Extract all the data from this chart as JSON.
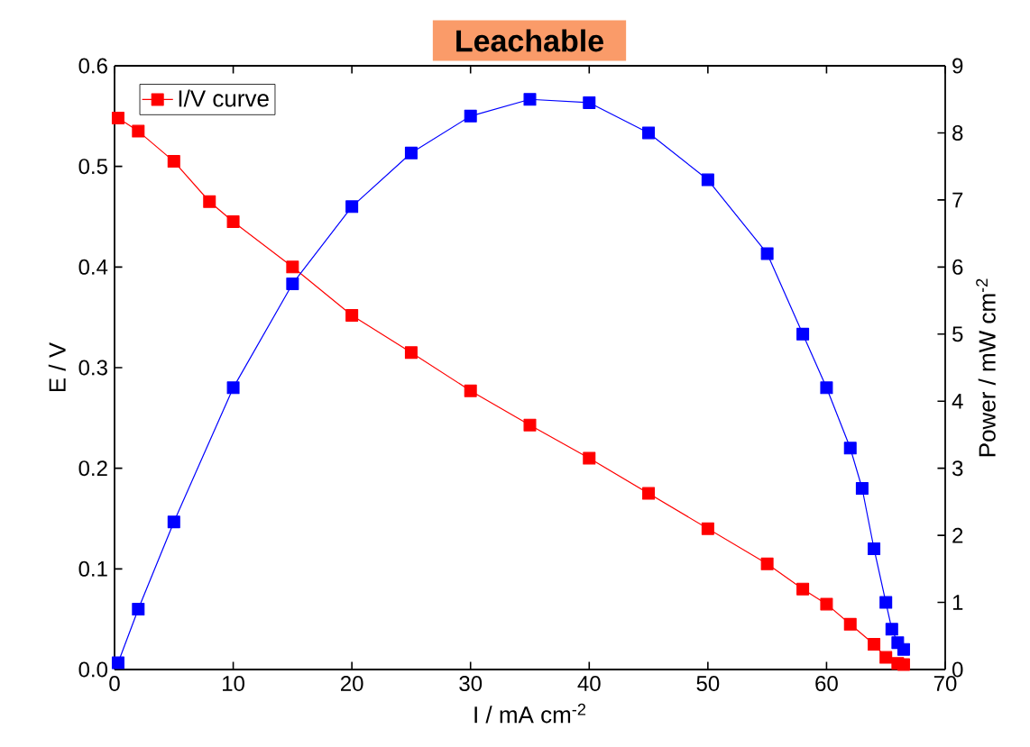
{
  "chart_data": {
    "type": "line",
    "title": "Leachable",
    "xlabel": "I / mA cm$^{-2}$",
    "ylabel": "E / V",
    "y2label": "Power / mW cm$^{-2}$",
    "xlim": [
      0,
      70
    ],
    "xticks": [
      0,
      10,
      20,
      30,
      40,
      50,
      60,
      70
    ],
    "ylim": [
      0,
      0.6
    ],
    "yticks": [
      {
        "value": 0,
        "label": "0.0"
      },
      0.1,
      0.2,
      0.3,
      0.4,
      0.5,
      0.6
    ],
    "y2lim": [
      0,
      9
    ],
    "y2ticks": [
      0,
      1,
      2,
      3,
      4,
      5,
      6,
      7,
      8,
      9
    ],
    "legend": "top left",
    "marker": "square",
    "line_style": "solid",
    "series": [
      {
        "name": "I/V curve",
        "color": "#ff0000",
        "x": [
          0.3,
          2,
          5,
          8,
          10,
          15,
          20,
          25,
          30,
          35,
          40,
          45,
          50,
          55,
          58,
          60,
          62,
          64,
          65,
          66,
          66.5
        ],
        "values": [
          0.548,
          0.535,
          0.505,
          0.465,
          0.445,
          0.4,
          0.352,
          0.315,
          0.277,
          0.243,
          0.21,
          0.175,
          0.14,
          0.105,
          0.08,
          0.065,
          0.045,
          0.025,
          0.012,
          0.006,
          0.005
        ]
      },
      {
        "color": "#0000ff",
        "axis": "y2",
        "x": [
          0.3,
          2,
          5,
          10,
          15,
          20,
          25,
          30,
          35,
          40,
          45,
          50,
          55,
          58,
          60,
          62,
          63,
          64,
          65,
          65.5,
          66,
          66.5
        ],
        "values": [
          0.1,
          0.9,
          2.2,
          4.2,
          5.75,
          6.9,
          7.7,
          8.25,
          8.5,
          8.45,
          8.0,
          7.3,
          6.2,
          5.0,
          4.2,
          3.3,
          2.7,
          1.8,
          1.0,
          0.6,
          0.4,
          0.3
        ]
      }
    ]
  }
}
